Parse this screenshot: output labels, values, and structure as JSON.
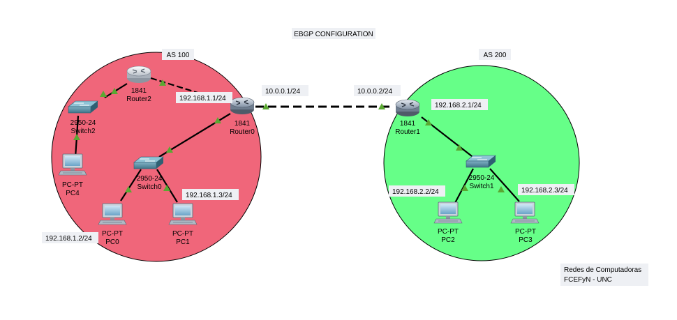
{
  "title": "EBGP CONFIGURATION",
  "footer": {
    "line1": "Redes de Computadoras",
    "line2": "FCEFyN - UNC"
  },
  "colors": {
    "as100_fill": "#f0667a",
    "as200_fill": "#66ff88",
    "link": "#000000",
    "link_indicator": "#5aa832",
    "label_bg": "#eef0f4"
  },
  "areas": {
    "as100": {
      "label": "AS 100"
    },
    "as200": {
      "label": "AS 200"
    }
  },
  "devices": {
    "router2": {
      "model": "1841",
      "name": "Router2",
      "icon": "router-icon"
    },
    "router0": {
      "model": "1841",
      "name": "Router0",
      "icon": "router-icon"
    },
    "router1": {
      "model": "1841",
      "name": "Router1",
      "icon": "router-icon"
    },
    "switch2": {
      "model": "2950-24",
      "name": "Switch2",
      "icon": "switch-icon"
    },
    "switch0": {
      "model": "2950-24",
      "name": "Switch0",
      "icon": "switch-icon"
    },
    "switch1": {
      "model": "2950-24",
      "name": "Switch1",
      "icon": "switch-icon"
    },
    "pc4": {
      "model": "PC-PT",
      "name": "PC4",
      "icon": "pc-icon"
    },
    "pc0": {
      "model": "PC-PT",
      "name": "PC0",
      "icon": "pc-icon"
    },
    "pc1": {
      "model": "PC-PT",
      "name": "PC1",
      "icon": "pc-icon"
    },
    "pc2": {
      "model": "PC-PT",
      "name": "PC2",
      "icon": "pc-icon"
    },
    "pc3": {
      "model": "PC-PT",
      "name": "PC3",
      "icon": "pc-icon"
    }
  },
  "ip_labels": {
    "r0_lan": "192.168.1.1/24",
    "r0_wan": "10.0.0.1/24",
    "r1_wan": "10.0.0.2/24",
    "r1_lan": "192.168.2.1/24",
    "pc0": "192.168.1.2/24",
    "pc1": "192.168.1.3/24",
    "pc2": "192.168.2.2/24",
    "pc3": "192.168.2.3/24"
  }
}
